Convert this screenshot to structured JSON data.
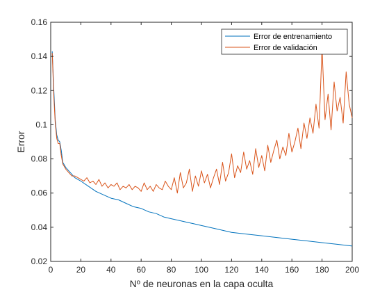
{
  "chart_data": {
    "type": "line",
    "title": "",
    "xlabel": "Nº de neuronas en la capa oculta",
    "ylabel": "Error",
    "xlim": [
      0,
      200
    ],
    "ylim": [
      0.02,
      0.16
    ],
    "xticks": [
      0,
      20,
      40,
      60,
      80,
      100,
      120,
      140,
      160,
      180,
      200
    ],
    "yticks": [
      0.02,
      0.04,
      0.06,
      0.08,
      0.1,
      0.12,
      0.14,
      0.16
    ],
    "xtick_labels": [
      "0",
      "20",
      "40",
      "60",
      "80",
      "100",
      "120",
      "140",
      "160",
      "180",
      "200"
    ],
    "ytick_labels": [
      "0.02",
      "0.04",
      "0.06",
      "0.08",
      "0.1",
      "0.12",
      "0.14",
      "0.16"
    ],
    "grid": false,
    "legend_position": "top-right",
    "series": [
      {
        "name": "Error de entrenamiento",
        "color": "#0072BD",
        "x": [
          1,
          2,
          3,
          4,
          5,
          6,
          7,
          8,
          10,
          12,
          14,
          16,
          18,
          20,
          25,
          30,
          35,
          40,
          45,
          50,
          55,
          60,
          65,
          70,
          75,
          80,
          85,
          90,
          95,
          100,
          110,
          120,
          130,
          140,
          150,
          160,
          170,
          180,
          190,
          200
        ],
        "y": [
          0.143,
          0.122,
          0.103,
          0.094,
          0.091,
          0.09,
          0.085,
          0.078,
          0.075,
          0.073,
          0.071,
          0.069,
          0.068,
          0.067,
          0.064,
          0.061,
          0.059,
          0.057,
          0.056,
          0.054,
          0.052,
          0.051,
          0.049,
          0.048,
          0.046,
          0.045,
          0.044,
          0.043,
          0.042,
          0.041,
          0.039,
          0.037,
          0.036,
          0.035,
          0.034,
          0.033,
          0.032,
          0.031,
          0.03,
          0.029
        ]
      },
      {
        "name": "Error de validación",
        "color": "#D95319",
        "x": [
          1,
          2,
          3,
          4,
          5,
          6,
          7,
          8,
          10,
          12,
          14,
          16,
          18,
          20,
          22,
          24,
          26,
          28,
          30,
          32,
          34,
          36,
          38,
          40,
          42,
          44,
          46,
          48,
          50,
          52,
          54,
          56,
          58,
          60,
          62,
          64,
          66,
          68,
          70,
          72,
          74,
          76,
          78,
          80,
          82,
          84,
          86,
          88,
          90,
          92,
          94,
          96,
          98,
          100,
          102,
          104,
          106,
          108,
          110,
          112,
          114,
          116,
          118,
          120,
          122,
          124,
          126,
          128,
          130,
          132,
          134,
          136,
          138,
          140,
          142,
          144,
          146,
          148,
          150,
          152,
          154,
          156,
          158,
          160,
          162,
          164,
          166,
          168,
          170,
          172,
          174,
          176,
          178,
          180,
          182,
          184,
          186,
          188,
          190,
          192,
          194,
          196,
          198,
          200
        ],
        "y": [
          0.142,
          0.118,
          0.101,
          0.092,
          0.089,
          0.089,
          0.082,
          0.077,
          0.074,
          0.072,
          0.07,
          0.07,
          0.069,
          0.068,
          0.067,
          0.069,
          0.066,
          0.067,
          0.065,
          0.068,
          0.064,
          0.066,
          0.063,
          0.065,
          0.064,
          0.066,
          0.062,
          0.064,
          0.063,
          0.065,
          0.062,
          0.064,
          0.063,
          0.061,
          0.066,
          0.062,
          0.064,
          0.061,
          0.065,
          0.063,
          0.062,
          0.067,
          0.064,
          0.062,
          0.069,
          0.06,
          0.072,
          0.063,
          0.066,
          0.074,
          0.061,
          0.07,
          0.064,
          0.073,
          0.066,
          0.071,
          0.063,
          0.069,
          0.074,
          0.065,
          0.078,
          0.067,
          0.072,
          0.083,
          0.069,
          0.076,
          0.072,
          0.084,
          0.074,
          0.079,
          0.071,
          0.086,
          0.075,
          0.082,
          0.073,
          0.088,
          0.078,
          0.085,
          0.091,
          0.08,
          0.087,
          0.082,
          0.095,
          0.084,
          0.09,
          0.098,
          0.086,
          0.101,
          0.092,
          0.104,
          0.095,
          0.112,
          0.098,
          0.145,
          0.103,
          0.118,
          0.097,
          0.125,
          0.108,
          0.116,
          0.101,
          0.131,
          0.112,
          0.104
        ]
      }
    ]
  }
}
